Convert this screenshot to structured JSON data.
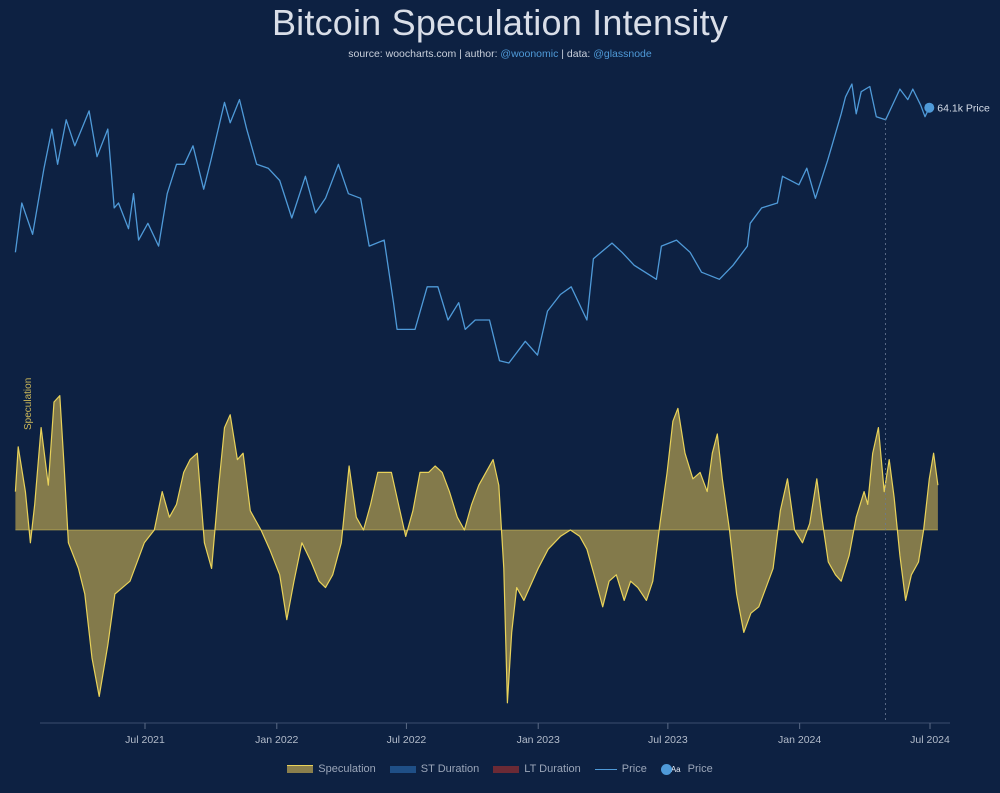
{
  "header": {
    "title": "Bitcoin Speculation Intensity",
    "source_label": "source:",
    "source_value": "woocharts.com",
    "author_label": "| author:",
    "author_value": "@woonomic",
    "data_label": "| data:",
    "data_value": "@glassnode"
  },
  "colors": {
    "background": "#0d2142",
    "price": "#4f9ad8",
    "speculation_fill": "#8a7f4c",
    "speculation_line": "#e8d25a",
    "st_duration": "#1f4f86",
    "lt_duration": "#6b2a35"
  },
  "legend": {
    "speculation": "Speculation",
    "st_duration": "ST Duration",
    "lt_duration": "LT Duration",
    "price": "Price",
    "price_marker": "Price",
    "price_marker_icon": "Aa"
  },
  "chart_data": {
    "type": "line",
    "x_ticks": [
      "Jul 2021",
      "Jan 2022",
      "Jul 2022",
      "Jan 2023",
      "Jul 2023",
      "Jan 2024",
      "Jul 2024"
    ],
    "y2_label": "Speculation",
    "last_price_label": "64.1k Price",
    "price_series": {
      "name": "Price",
      "points": [
        [
          "2021-01-01",
          29
        ],
        [
          "2021-01-10",
          38
        ],
        [
          "2021-01-25",
          32
        ],
        [
          "2021-02-10",
          46
        ],
        [
          "2021-02-21",
          57
        ],
        [
          "2021-03-01",
          47
        ],
        [
          "2021-03-13",
          60
        ],
        [
          "2021-03-25",
          52
        ],
        [
          "2021-04-14",
          63
        ],
        [
          "2021-04-25",
          49
        ],
        [
          "2021-05-10",
          57
        ],
        [
          "2021-05-19",
          37
        ],
        [
          "2021-05-25",
          38
        ],
        [
          "2021-06-08",
          33
        ],
        [
          "2021-06-15",
          40
        ],
        [
          "2021-06-22",
          31
        ],
        [
          "2021-07-05",
          34
        ],
        [
          "2021-07-20",
          30
        ],
        [
          "2021-08-01",
          40
        ],
        [
          "2021-08-14",
          47
        ],
        [
          "2021-08-25",
          47
        ],
        [
          "2021-09-06",
          52
        ],
        [
          "2021-09-21",
          41
        ],
        [
          "2021-10-01",
          48
        ],
        [
          "2021-10-20",
          66
        ],
        [
          "2021-10-28",
          59
        ],
        [
          "2021-11-10",
          67
        ],
        [
          "2021-11-20",
          57
        ],
        [
          "2021-12-04",
          47
        ],
        [
          "2021-12-20",
          46
        ],
        [
          "2022-01-05",
          43
        ],
        [
          "2022-01-22",
          35
        ],
        [
          "2022-02-10",
          44
        ],
        [
          "2022-02-24",
          36
        ],
        [
          "2022-03-10",
          39
        ],
        [
          "2022-03-28",
          47
        ],
        [
          "2022-04-11",
          40
        ],
        [
          "2022-04-28",
          39
        ],
        [
          "2022-05-10",
          30
        ],
        [
          "2022-05-31",
          31
        ],
        [
          "2022-06-13",
          22
        ],
        [
          "2022-06-18",
          19
        ],
        [
          "2022-06-30",
          19
        ],
        [
          "2022-07-13",
          19
        ],
        [
          "2022-07-30",
          24
        ],
        [
          "2022-08-14",
          24
        ],
        [
          "2022-08-28",
          20
        ],
        [
          "2022-09-12",
          22
        ],
        [
          "2022-09-21",
          19
        ],
        [
          "2022-10-05",
          20
        ],
        [
          "2022-10-25",
          20
        ],
        [
          "2022-11-08",
          16
        ],
        [
          "2022-11-21",
          15.8
        ],
        [
          "2022-12-14",
          17.8
        ],
        [
          "2022-12-31",
          16.5
        ],
        [
          "2023-01-14",
          21
        ],
        [
          "2023-02-01",
          23
        ],
        [
          "2023-02-16",
          24
        ],
        [
          "2023-03-10",
          20
        ],
        [
          "2023-03-19",
          28
        ],
        [
          "2023-04-14",
          30.5
        ],
        [
          "2023-04-28",
          29
        ],
        [
          "2023-05-15",
          27
        ],
        [
          "2023-06-15",
          25
        ],
        [
          "2023-06-22",
          30
        ],
        [
          "2023-07-13",
          31
        ],
        [
          "2023-08-01",
          29
        ],
        [
          "2023-08-17",
          26
        ],
        [
          "2023-09-11",
          25
        ],
        [
          "2023-09-30",
          27
        ],
        [
          "2023-10-20",
          30
        ],
        [
          "2023-10-24",
          34
        ],
        [
          "2023-11-09",
          37
        ],
        [
          "2023-12-01",
          38
        ],
        [
          "2023-12-08",
          44
        ],
        [
          "2023-12-31",
          42
        ],
        [
          "2024-01-11",
          46
        ],
        [
          "2024-01-23",
          39
        ],
        [
          "2024-02-09",
          48
        ],
        [
          "2024-02-15",
          52
        ],
        [
          "2024-02-28",
          62
        ],
        [
          "2024-03-05",
          68
        ],
        [
          "2024-03-14",
          73
        ],
        [
          "2024-03-20",
          62
        ],
        [
          "2024-03-27",
          70
        ],
        [
          "2024-04-08",
          72
        ],
        [
          "2024-04-17",
          61
        ],
        [
          "2024-04-30",
          60
        ],
        [
          "2024-05-20",
          71
        ],
        [
          "2024-05-31",
          67
        ],
        [
          "2024-06-07",
          71
        ],
        [
          "2024-06-18",
          65
        ],
        [
          "2024-06-24",
          61
        ],
        [
          "2024-06-30",
          64.1
        ]
      ]
    },
    "speculation_series": {
      "name": "Speculation",
      "points": [
        [
          "2021-01-01",
          0.3
        ],
        [
          "2021-01-05",
          0.65
        ],
        [
          "2021-01-15",
          0.3
        ],
        [
          "2021-01-22",
          -0.1
        ],
        [
          "2021-01-28",
          0.2
        ],
        [
          "2021-02-06",
          0.8
        ],
        [
          "2021-02-16",
          0.35
        ],
        [
          "2021-02-24",
          1.0
        ],
        [
          "2021-03-04",
          1.05
        ],
        [
          "2021-03-10",
          0.5
        ],
        [
          "2021-03-16",
          -0.1
        ],
        [
          "2021-03-30",
          -0.3
        ],
        [
          "2021-04-08",
          -0.5
        ],
        [
          "2021-04-18",
          -1.0
        ],
        [
          "2021-04-28",
          -1.3
        ],
        [
          "2021-05-10",
          -0.9
        ],
        [
          "2021-05-20",
          -0.5
        ],
        [
          "2021-06-10",
          -0.4
        ],
        [
          "2021-06-30",
          -0.1
        ],
        [
          "2021-07-14",
          0.0
        ],
        [
          "2021-07-25",
          0.3
        ],
        [
          "2021-08-04",
          0.1
        ],
        [
          "2021-08-14",
          0.2
        ],
        [
          "2021-08-24",
          0.45
        ],
        [
          "2021-09-02",
          0.55
        ],
        [
          "2021-09-12",
          0.6
        ],
        [
          "2021-09-22",
          -0.1
        ],
        [
          "2021-10-02",
          -0.3
        ],
        [
          "2021-10-12",
          0.35
        ],
        [
          "2021-10-20",
          0.8
        ],
        [
          "2021-10-28",
          0.9
        ],
        [
          "2021-11-07",
          0.55
        ],
        [
          "2021-11-15",
          0.6
        ],
        [
          "2021-11-25",
          0.15
        ],
        [
          "2021-12-10",
          0.0
        ],
        [
          "2021-12-22",
          -0.15
        ],
        [
          "2022-01-05",
          -0.35
        ],
        [
          "2022-01-15",
          -0.7
        ],
        [
          "2022-01-25",
          -0.4
        ],
        [
          "2022-02-05",
          -0.1
        ],
        [
          "2022-02-18",
          -0.25
        ],
        [
          "2022-03-01",
          -0.4
        ],
        [
          "2022-03-10",
          -0.45
        ],
        [
          "2022-03-20",
          -0.35
        ],
        [
          "2022-04-01",
          -0.1
        ],
        [
          "2022-04-12",
          0.5
        ],
        [
          "2022-04-22",
          0.1
        ],
        [
          "2022-05-02",
          0.0
        ],
        [
          "2022-05-12",
          0.2
        ],
        [
          "2022-05-22",
          0.45
        ],
        [
          "2022-06-01",
          0.45
        ],
        [
          "2022-06-10",
          0.45
        ],
        [
          "2022-06-20",
          0.2
        ],
        [
          "2022-06-30",
          -0.05
        ],
        [
          "2022-07-10",
          0.15
        ],
        [
          "2022-07-20",
          0.45
        ],
        [
          "2022-08-01",
          0.45
        ],
        [
          "2022-08-10",
          0.5
        ],
        [
          "2022-08-20",
          0.45
        ],
        [
          "2022-08-30",
          0.3
        ],
        [
          "2022-09-10",
          0.1
        ],
        [
          "2022-09-20",
          0.0
        ],
        [
          "2022-09-30",
          0.2
        ],
        [
          "2022-10-10",
          0.35
        ],
        [
          "2022-10-20",
          0.45
        ],
        [
          "2022-10-30",
          0.55
        ],
        [
          "2022-11-07",
          0.35
        ],
        [
          "2022-11-14",
          -0.3
        ],
        [
          "2022-11-19",
          -1.35
        ],
        [
          "2022-11-25",
          -0.8
        ],
        [
          "2022-12-02",
          -0.45
        ],
        [
          "2022-12-12",
          -0.55
        ],
        [
          "2023-01-01",
          -0.3
        ],
        [
          "2023-01-15",
          -0.15
        ],
        [
          "2023-02-01",
          -0.05
        ],
        [
          "2023-02-15",
          0.0
        ],
        [
          "2023-02-28",
          -0.05
        ],
        [
          "2023-03-10",
          -0.15
        ],
        [
          "2023-03-20",
          -0.35
        ],
        [
          "2023-04-01",
          -0.6
        ],
        [
          "2023-04-10",
          -0.4
        ],
        [
          "2023-04-20",
          -0.35
        ],
        [
          "2023-05-01",
          -0.55
        ],
        [
          "2023-05-10",
          -0.4
        ],
        [
          "2023-05-20",
          -0.45
        ],
        [
          "2023-06-01",
          -0.55
        ],
        [
          "2023-06-10",
          -0.4
        ],
        [
          "2023-06-20",
          0.05
        ],
        [
          "2023-06-30",
          0.45
        ],
        [
          "2023-07-08",
          0.85
        ],
        [
          "2023-07-15",
          0.95
        ],
        [
          "2023-07-25",
          0.6
        ],
        [
          "2023-08-05",
          0.4
        ],
        [
          "2023-08-15",
          0.45
        ],
        [
          "2023-08-25",
          0.3
        ],
        [
          "2023-09-01",
          0.6
        ],
        [
          "2023-09-08",
          0.75
        ],
        [
          "2023-09-15",
          0.4
        ],
        [
          "2023-09-25",
          0.0
        ],
        [
          "2023-10-05",
          -0.5
        ],
        [
          "2023-10-15",
          -0.8
        ],
        [
          "2023-10-25",
          -0.65
        ],
        [
          "2023-11-05",
          -0.6
        ],
        [
          "2023-11-15",
          -0.45
        ],
        [
          "2023-11-25",
          -0.3
        ],
        [
          "2023-12-05",
          0.15
        ],
        [
          "2023-12-15",
          0.4
        ],
        [
          "2023-12-25",
          0.0
        ],
        [
          "2024-01-05",
          -0.1
        ],
        [
          "2024-01-15",
          0.05
        ],
        [
          "2024-01-25",
          0.4
        ],
        [
          "2024-02-01",
          0.1
        ],
        [
          "2024-02-10",
          -0.25
        ],
        [
          "2024-02-20",
          -0.35
        ],
        [
          "2024-02-28",
          -0.4
        ],
        [
          "2024-03-10",
          -0.2
        ],
        [
          "2024-03-20",
          0.1
        ],
        [
          "2024-03-31",
          0.3
        ],
        [
          "2024-04-05",
          0.2
        ],
        [
          "2024-04-12",
          0.6
        ],
        [
          "2024-04-20",
          0.8
        ],
        [
          "2024-04-28",
          0.3
        ],
        [
          "2024-05-05",
          0.55
        ],
        [
          "2024-05-12",
          0.25
        ],
        [
          "2024-05-20",
          -0.2
        ],
        [
          "2024-05-28",
          -0.55
        ],
        [
          "2024-06-05",
          -0.35
        ],
        [
          "2024-06-15",
          -0.25
        ],
        [
          "2024-06-22",
          0.0
        ],
        [
          "2024-06-30",
          0.4
        ],
        [
          "2024-07-06",
          0.6
        ],
        [
          "2024-07-12",
          0.35
        ]
      ]
    }
  }
}
